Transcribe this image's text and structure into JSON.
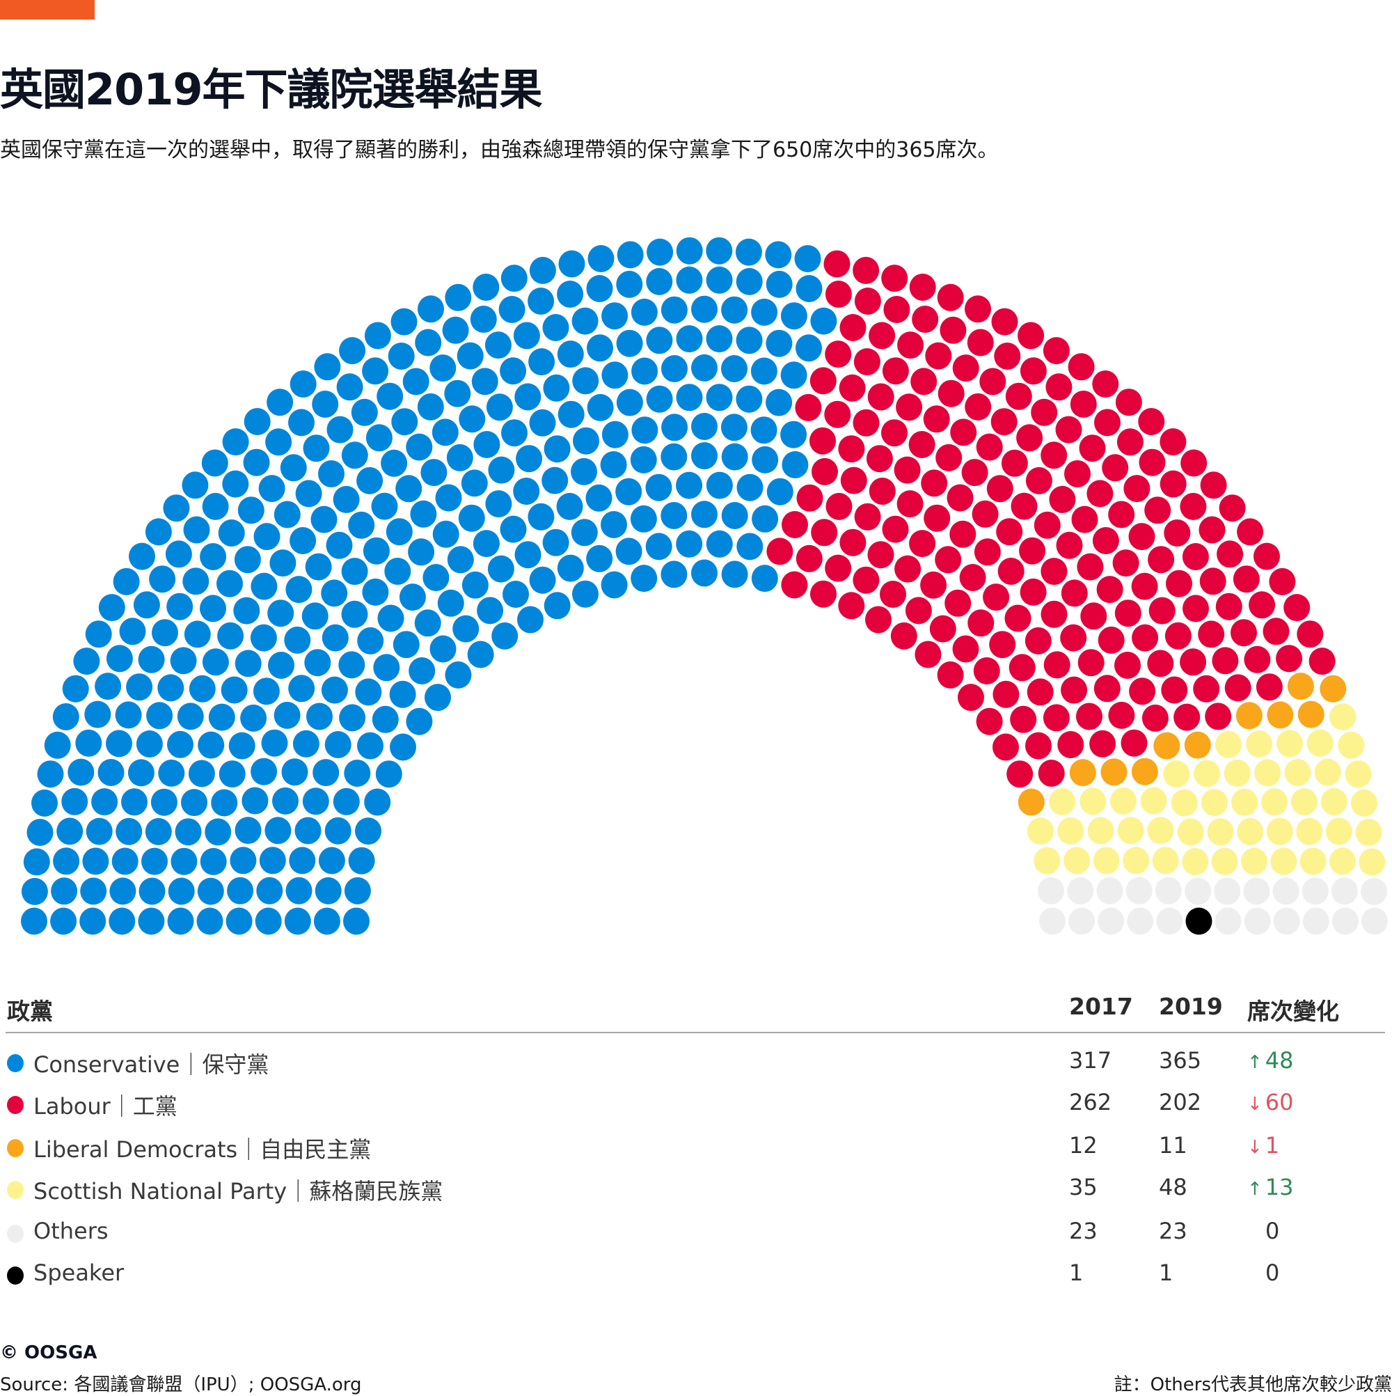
{
  "header": {
    "accent_color": "#F15A22",
    "title": "英國2019年下議院選舉結果",
    "subtitle": "英國保守黨在這一次的選舉中，取得了顯著的勝利，由強森總理帶領的保守黨拿下了650席次中的365席次。"
  },
  "table": {
    "headers": {
      "party": "政黨",
      "y2017": "2017",
      "y2019": "2019",
      "change": "席次變化"
    },
    "rows": [
      {
        "name": "Conservative｜保守黨",
        "color": "#0087DC",
        "y2017": "317",
        "y2019": "365",
        "change": "48",
        "direction": "up"
      },
      {
        "name": "Labour｜工黨",
        "color": "#E4003B",
        "y2017": "262",
        "y2019": "202",
        "change": "60",
        "direction": "down"
      },
      {
        "name": "Liberal Democrats｜自由民主黨",
        "color": "#FAA61A",
        "y2017": "12",
        "y2019": "11",
        "change": "1",
        "direction": "down"
      },
      {
        "name": "Scottish National Party｜蘇格蘭民族黨",
        "color": "#FDF38E",
        "y2017": "35",
        "y2019": "48",
        "change": "13",
        "direction": "up"
      },
      {
        "name": "Others",
        "color": "#EEEEEE",
        "y2017": "23",
        "y2019": "23",
        "change": "0",
        "direction": "none"
      },
      {
        "name": "Speaker",
        "color": "#000000",
        "y2017": "1",
        "y2019": "1",
        "change": "0",
        "direction": "none"
      }
    ],
    "up_color": "#2E8B57",
    "down_color": "#E0525E",
    "up_arrow": "↑",
    "down_arrow": "↓"
  },
  "footer": {
    "copyright": "© OOSGA",
    "source": "Source: 各國議會聯盟（IPU）; OOSGA.org",
    "note": "註：Others代表其他席次較少政黨"
  },
  "chart_data": {
    "type": "parliament",
    "title": "英國2019年下議院選舉結果",
    "total_seats": 650,
    "rows": 12,
    "series": [
      {
        "name": "Conservative",
        "values": [
          365
        ],
        "color": "#0087DC"
      },
      {
        "name": "Labour",
        "values": [
          202
        ],
        "color": "#E4003B"
      },
      {
        "name": "Liberal Democrats",
        "values": [
          11
        ],
        "color": "#FAA61A"
      },
      {
        "name": "Scottish National Party",
        "values": [
          48
        ],
        "color": "#FDF38E"
      },
      {
        "name": "Others",
        "values": [
          23
        ],
        "color": "#EEEEEE"
      },
      {
        "name": "Speaker",
        "values": [
          1
        ],
        "color": "#000000"
      }
    ],
    "categories": [
      "2017",
      "2019"
    ],
    "seats_2017": [
      317,
      262,
      12,
      35,
      23,
      1
    ],
    "seats_2019": [
      365,
      202,
      11,
      48,
      23,
      1
    ]
  }
}
